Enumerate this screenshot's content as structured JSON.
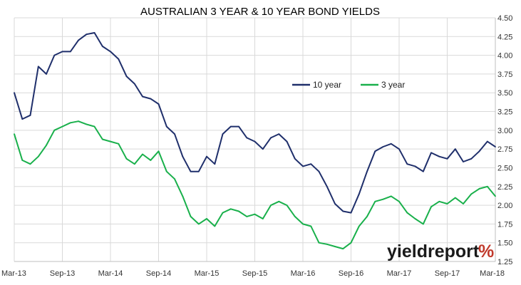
{
  "chart_data": {
    "type": "line",
    "title": "AUSTRALIAN 3 YEAR & 10 YEAR BOND YIELDS",
    "xlabel": "",
    "ylabel": "",
    "x_tick_labels": [
      "Mar-13",
      "Sep-13",
      "Mar-14",
      "Sep-14",
      "Mar-15",
      "Sep-15",
      "Mar-16",
      "Sep-16",
      "Mar-17",
      "Sep-17",
      "Mar-18"
    ],
    "y_tick_labels": [
      "1.25",
      "1.50",
      "1.75",
      "2.00",
      "2.25",
      "2.50",
      "2.75",
      "3.00",
      "3.25",
      "3.50",
      "3.75",
      "4.00",
      "4.25",
      "4.50"
    ],
    "ylim": [
      1.25,
      4.5
    ],
    "y_axis_side": "right",
    "grid": true,
    "legend_position": "top-right",
    "series": [
      {
        "name": "10 year",
        "color": "#1f2f6b",
        "x": [
          "Mar-13",
          "Apr-13",
          "May-13",
          "Jun-13",
          "Jul-13",
          "Aug-13",
          "Sep-13",
          "Oct-13",
          "Nov-13",
          "Dec-13",
          "Jan-14",
          "Feb-14",
          "Mar-14",
          "Apr-14",
          "May-14",
          "Jun-14",
          "Jul-14",
          "Aug-14",
          "Sep-14",
          "Oct-14",
          "Nov-14",
          "Dec-14",
          "Jan-15",
          "Feb-15",
          "Mar-15",
          "Apr-15",
          "May-15",
          "Jun-15",
          "Jul-15",
          "Aug-15",
          "Sep-15",
          "Oct-15",
          "Nov-15",
          "Dec-15",
          "Jan-16",
          "Feb-16",
          "Mar-16",
          "Apr-16",
          "May-16",
          "Jun-16",
          "Jul-16",
          "Aug-16",
          "Sep-16",
          "Oct-16",
          "Nov-16",
          "Dec-16",
          "Jan-17",
          "Feb-17",
          "Mar-17",
          "Apr-17",
          "May-17",
          "Jun-17",
          "Jul-17",
          "Aug-17",
          "Sep-17",
          "Oct-17",
          "Nov-17",
          "Dec-17",
          "Jan-18",
          "Feb-18",
          "Mar-18"
        ],
        "values": [
          3.5,
          3.15,
          3.2,
          3.85,
          3.75,
          4.0,
          4.05,
          4.05,
          4.2,
          4.28,
          4.3,
          4.12,
          4.05,
          3.95,
          3.72,
          3.62,
          3.45,
          3.42,
          3.35,
          3.05,
          2.95,
          2.65,
          2.45,
          2.45,
          2.65,
          2.55,
          2.95,
          3.05,
          3.05,
          2.9,
          2.85,
          2.75,
          2.9,
          2.95,
          2.85,
          2.62,
          2.52,
          2.55,
          2.45,
          2.25,
          2.02,
          1.92,
          1.9,
          2.15,
          2.45,
          2.72,
          2.78,
          2.82,
          2.75,
          2.55,
          2.52,
          2.45,
          2.7,
          2.65,
          2.62,
          2.75,
          2.58,
          2.62,
          2.72,
          2.85,
          2.78
        ]
      },
      {
        "name": "3 year",
        "color": "#19b04b",
        "x": [
          "Mar-13",
          "Apr-13",
          "May-13",
          "Jun-13",
          "Jul-13",
          "Aug-13",
          "Sep-13",
          "Oct-13",
          "Nov-13",
          "Dec-13",
          "Jan-14",
          "Feb-14",
          "Mar-14",
          "Apr-14",
          "May-14",
          "Jun-14",
          "Jul-14",
          "Aug-14",
          "Sep-14",
          "Oct-14",
          "Nov-14",
          "Dec-14",
          "Jan-15",
          "Feb-15",
          "Mar-15",
          "Apr-15",
          "May-15",
          "Jun-15",
          "Jul-15",
          "Aug-15",
          "Sep-15",
          "Oct-15",
          "Nov-15",
          "Dec-15",
          "Jan-16",
          "Feb-16",
          "Mar-16",
          "Apr-16",
          "May-16",
          "Jun-16",
          "Jul-16",
          "Aug-16",
          "Sep-16",
          "Oct-16",
          "Nov-16",
          "Dec-16",
          "Jan-17",
          "Feb-17",
          "Mar-17",
          "Apr-17",
          "May-17",
          "Jun-17",
          "Jul-17",
          "Aug-17",
          "Sep-17",
          "Oct-17",
          "Nov-17",
          "Dec-17",
          "Jan-18",
          "Feb-18",
          "Mar-18"
        ],
        "values": [
          2.95,
          2.6,
          2.55,
          2.65,
          2.8,
          3.0,
          3.05,
          3.1,
          3.12,
          3.08,
          3.05,
          2.88,
          2.85,
          2.82,
          2.62,
          2.55,
          2.68,
          2.6,
          2.72,
          2.45,
          2.35,
          2.12,
          1.85,
          1.75,
          1.82,
          1.72,
          1.9,
          1.95,
          1.92,
          1.85,
          1.88,
          1.82,
          2.0,
          2.05,
          2.0,
          1.85,
          1.75,
          1.72,
          1.5,
          1.48,
          1.45,
          1.42,
          1.5,
          1.72,
          1.85,
          2.05,
          2.08,
          2.12,
          2.05,
          1.9,
          1.82,
          1.75,
          1.98,
          2.05,
          2.02,
          2.1,
          2.02,
          2.15,
          2.22,
          2.25,
          2.12
        ]
      }
    ]
  },
  "branding": {
    "logo_text": "yieldreport",
    "logo_symbol": "%"
  }
}
